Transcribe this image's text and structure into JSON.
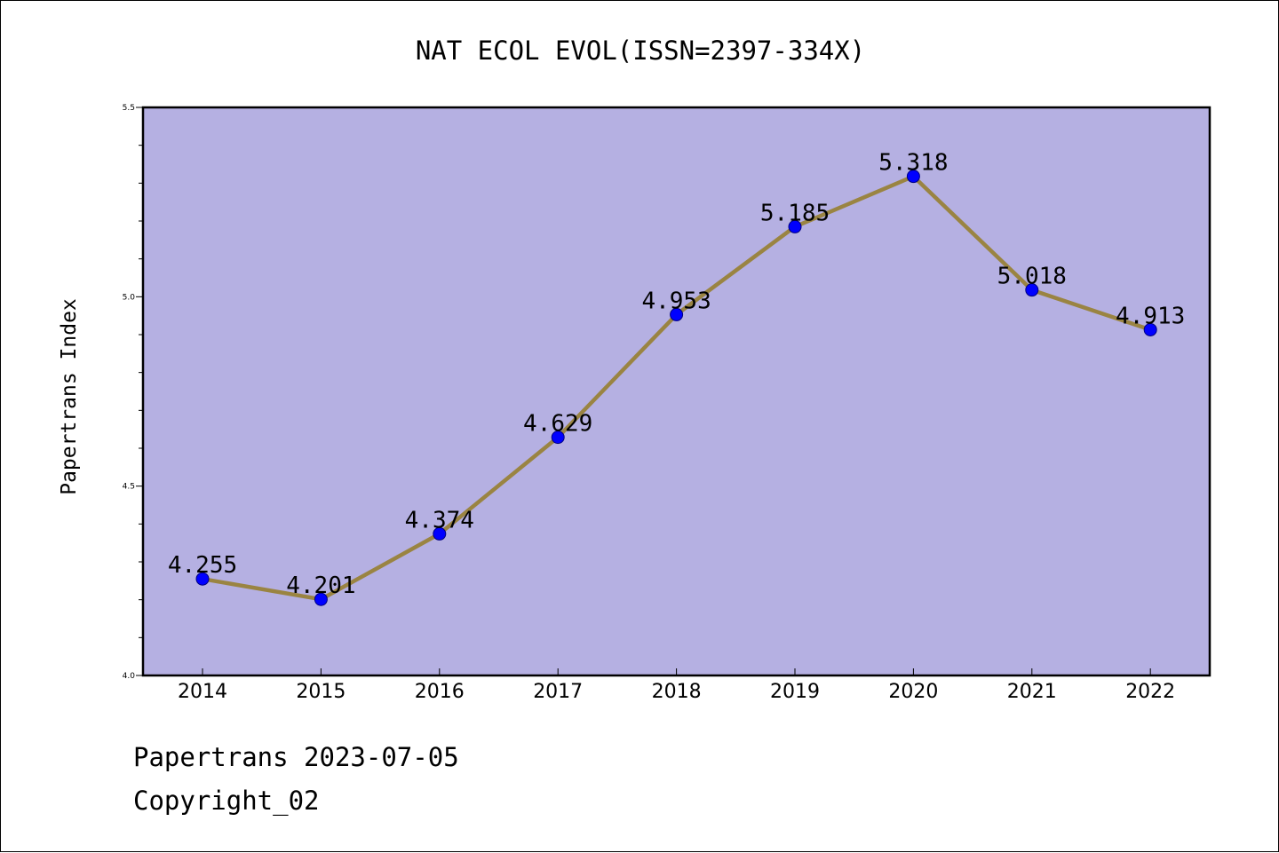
{
  "chart_data": {
    "type": "line",
    "title": "NAT ECOL EVOL(ISSN=2397-334X)",
    "xlabel": "",
    "ylabel": "Papertrans Index",
    "categories": [
      "2014",
      "2015",
      "2016",
      "2017",
      "2018",
      "2019",
      "2020",
      "2021",
      "2022"
    ],
    "values": [
      4.255,
      4.201,
      4.374,
      4.629,
      4.953,
      5.185,
      5.318,
      5.018,
      4.913
    ],
    "data_labels": [
      "4.255",
      "4.201",
      "4.374",
      "4.629",
      "4.953",
      "5.185",
      "5.318",
      "5.018",
      "4.913"
    ],
    "ylim": [
      4.0,
      5.5
    ],
    "yticks": [
      "4.0",
      "4.5",
      "5.0",
      "5.5"
    ],
    "grid": false,
    "legend": "none",
    "colors": {
      "plot_background": "#b5b0e2",
      "line": "#9a8442",
      "marker_fill": "#0000ff",
      "marker_edge": "#000080"
    }
  },
  "footer": {
    "line1": "Papertrans 2023-07-05",
    "line2": "Copyright_02"
  }
}
